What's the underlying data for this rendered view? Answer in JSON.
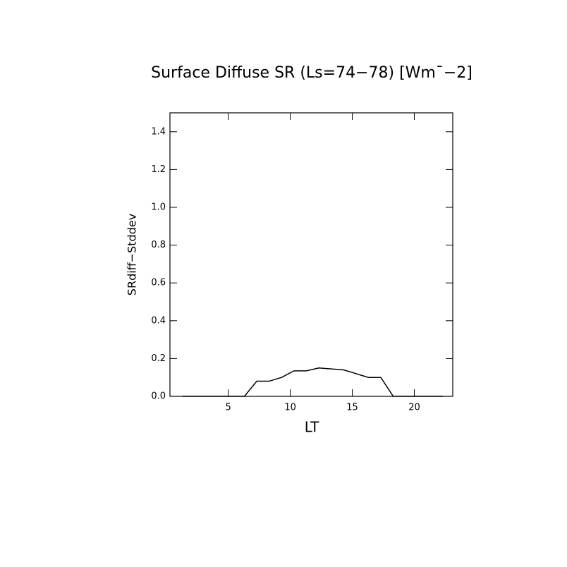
{
  "chart_data": {
    "type": "line",
    "title": "Surface Diffuse SR (Ls=74−78) [Wm¯−2]",
    "x_label": "LT",
    "y_label": "SRdiff−Stddev",
    "x": [
      1.3,
      2.3,
      3.3,
      4.3,
      5.3,
      6.3,
      7.3,
      8.3,
      9.3,
      10.3,
      11.3,
      12.3,
      13.3,
      14.3,
      15.3,
      16.3,
      17.3,
      18.3,
      19.3,
      20.3,
      21.3,
      22.3
    ],
    "values": [
      0,
      0,
      0,
      0,
      0,
      0,
      0.08,
      0.08,
      0.1,
      0.135,
      0.135,
      0.15,
      0.145,
      0.14,
      0.12,
      0.1,
      0.1,
      0,
      0,
      0,
      0,
      0
    ],
    "color": "#000000",
    "xlim": [
      0.3,
      23.1
    ],
    "ylim": [
      0,
      1.5
    ],
    "xticks": [
      5,
      10,
      15,
      20
    ],
    "yticks": [
      {
        "value": 0,
        "label": "0.0"
      },
      {
        "value": 0.2,
        "label": "0.2"
      },
      {
        "value": 0.4,
        "label": "0.4"
      },
      {
        "value": 0.6,
        "label": "0.6"
      },
      {
        "value": 0.8,
        "label": "0.8"
      },
      {
        "value": 1.0,
        "label": "1.0"
      },
      {
        "value": 1.2,
        "label": "1.2"
      },
      {
        "value": 1.4,
        "label": "1.4"
      }
    ]
  }
}
